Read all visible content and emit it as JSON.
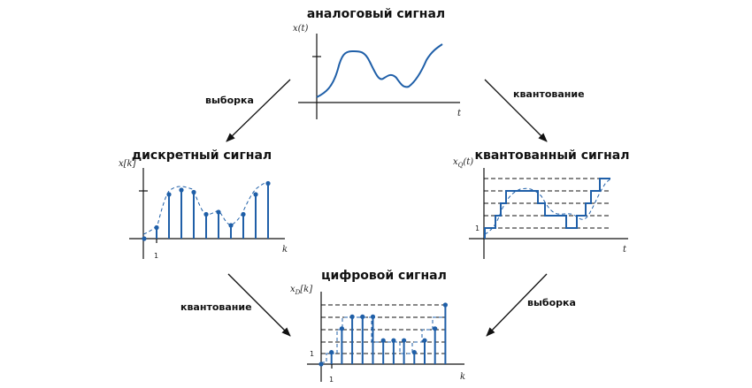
{
  "titles": {
    "analog": "аналоговый сигнал",
    "discrete": "дискретный сигнал",
    "quantized": "квантованный сигнал",
    "digital": "цифровой сигнал"
  },
  "arrows": {
    "sampling_left": "выборка",
    "quantizing_right": "квантование",
    "quantizing_left": "квантование",
    "sampling_right": "выборка"
  },
  "axes": {
    "analog_y": "x(t)",
    "analog_x": "t",
    "discrete_y": "x[k]",
    "discrete_x": "k",
    "discrete_tick": "1",
    "quantized_y_main": "x",
    "quantized_y_sub": "Q",
    "quantized_y_arg": "(t)",
    "quantized_x": "t",
    "quantized_tick": "1",
    "digital_y_main": "x",
    "digital_y_sub": "D",
    "digital_y_arg": "[k]",
    "digital_x": "k",
    "digital_tick_x": "1",
    "digital_tick_y": "1"
  },
  "colors": {
    "signal": "#1f5fa8",
    "axis": "#111111"
  },
  "discrete_samples": [
    0.0,
    0.25,
    1.0,
    1.1,
    1.05,
    0.55,
    0.6,
    0.3,
    0.55,
    1.0,
    1.25
  ],
  "digital_samples": [
    0,
    1,
    3,
    4,
    4,
    4,
    2,
    2,
    2,
    1,
    2,
    3,
    5
  ]
}
